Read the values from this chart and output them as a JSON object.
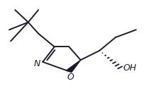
{
  "bg_color": "#ffffff",
  "line_color": "#1c1c2e",
  "lw": 1.4,
  "figsize": [
    2.07,
    1.22
  ],
  "dpi": 100,
  "N_label": "N",
  "O_label": "O",
  "OH_label": "OH",
  "label_fontsize": 9
}
